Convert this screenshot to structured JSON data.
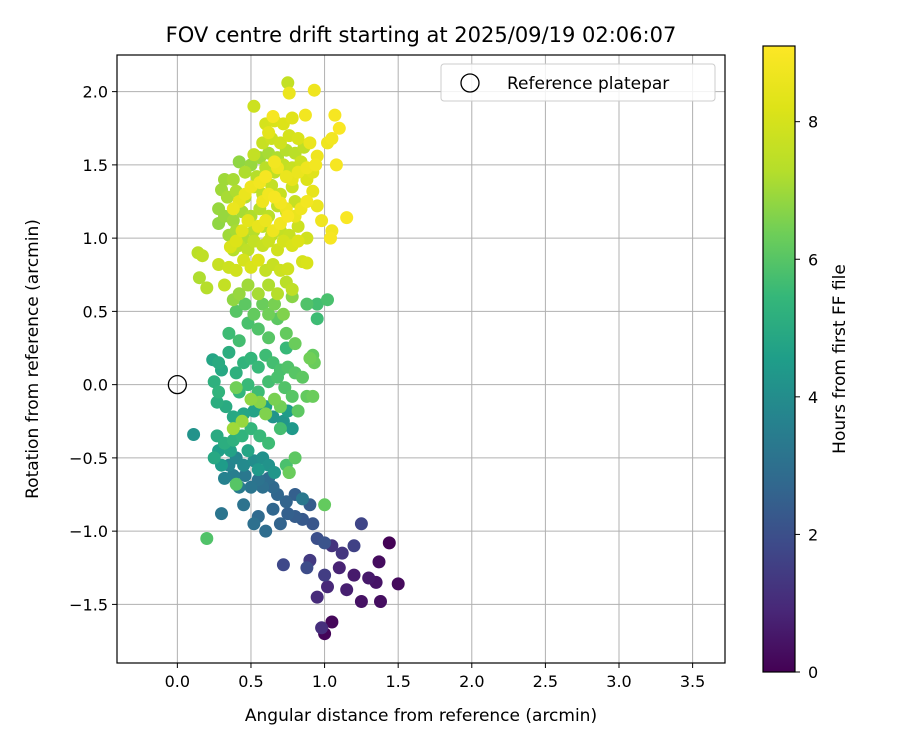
{
  "chart_data": {
    "type": "scatter",
    "title": "FOV centre drift starting at 2025/09/19 02:06:07",
    "xlabel": "Angular distance from reference (arcmin)",
    "ylabel": "Rotation from reference (arcmin)",
    "xlim": [
      -0.41,
      3.72
    ],
    "ylim": [
      -1.9,
      2.25
    ],
    "xticks": [
      0.0,
      0.5,
      1.0,
      1.5,
      2.0,
      2.5,
      3.0,
      3.5
    ],
    "xtick_labels": [
      "0.0",
      "0.5",
      "1.0",
      "1.5",
      "2.0",
      "2.5",
      "3.0",
      "3.5"
    ],
    "yticks": [
      -1.5,
      -1.0,
      -0.5,
      0.0,
      0.5,
      1.0,
      1.5,
      2.0
    ],
    "ytick_labels": [
      "−1.5",
      "−1.0",
      "−0.5",
      "0.0",
      "0.5",
      "1.0",
      "1.5",
      "2.0"
    ],
    "grid": true,
    "legend": {
      "position": "top-right",
      "entries": [
        "Reference platepar"
      ]
    },
    "reference_point": {
      "x": 0.0,
      "y": 0.0,
      "label": "Reference platepar"
    },
    "colorbar": {
      "label": "Hours from first FF file",
      "range": [
        0,
        9.1
      ],
      "ticks": [
        0,
        2,
        4,
        6,
        8
      ],
      "tick_labels": [
        "0",
        "2",
        "4",
        "6",
        "8"
      ],
      "colormap": "viridis"
    },
    "points": [
      [
        1.0,
        -1.7,
        0.1
      ],
      [
        1.05,
        -1.62,
        0.15
      ],
      [
        1.38,
        -1.48,
        0.3
      ],
      [
        1.25,
        -1.48,
        0.4
      ],
      [
        1.5,
        -1.36,
        0.2
      ],
      [
        1.37,
        -1.21,
        0.25
      ],
      [
        1.44,
        -1.08,
        0.05
      ],
      [
        1.35,
        -1.35,
        0.45
      ],
      [
        1.3,
        -1.32,
        0.55
      ],
      [
        1.2,
        -1.3,
        0.6
      ],
      [
        1.15,
        -1.4,
        0.7
      ],
      [
        1.1,
        -1.25,
        0.8
      ],
      [
        1.02,
        -1.38,
        0.9
      ],
      [
        0.95,
        -1.45,
        1.0
      ],
      [
        0.98,
        -1.66,
        1.1
      ],
      [
        1.05,
        -1.1,
        1.2
      ],
      [
        1.12,
        -1.15,
        1.3
      ],
      [
        0.9,
        -1.2,
        1.4
      ],
      [
        1.0,
        -1.3,
        1.5
      ],
      [
        1.2,
        -1.1,
        1.6
      ],
      [
        1.25,
        -0.95,
        1.7
      ],
      [
        0.72,
        -1.23,
        1.8
      ],
      [
        0.88,
        -1.25,
        1.9
      ],
      [
        0.95,
        -1.05,
        2.0
      ],
      [
        1.0,
        -1.08,
        2.1
      ],
      [
        0.92,
        -0.95,
        2.2
      ],
      [
        0.85,
        -0.92,
        2.3
      ],
      [
        0.8,
        -0.9,
        2.4
      ],
      [
        0.75,
        -0.88,
        2.5
      ],
      [
        0.7,
        -0.95,
        2.6
      ],
      [
        0.65,
        -0.85,
        2.7
      ],
      [
        0.55,
        -0.9,
        2.8
      ],
      [
        0.6,
        -1.0,
        2.9
      ],
      [
        0.52,
        -0.95,
        3.0
      ],
      [
        0.45,
        -0.82,
        3.1
      ],
      [
        0.3,
        -0.88,
        3.2
      ],
      [
        0.85,
        -0.78,
        3.3
      ],
      [
        0.9,
        -0.82,
        2.4
      ],
      [
        0.8,
        -0.75,
        2.5
      ],
      [
        0.74,
        -0.8,
        2.6
      ],
      [
        0.68,
        -0.75,
        2.7
      ],
      [
        0.65,
        -0.7,
        2.8
      ],
      [
        0.62,
        -0.64,
        2.9
      ],
      [
        0.58,
        -0.7,
        3.0
      ],
      [
        0.55,
        -0.65,
        3.1
      ],
      [
        0.5,
        -0.7,
        3.2
      ],
      [
        0.46,
        -0.62,
        3.3
      ],
      [
        0.42,
        -0.7,
        3.4
      ],
      [
        0.38,
        -0.62,
        3.5
      ],
      [
        0.32,
        -0.64,
        3.6
      ],
      [
        0.35,
        -0.55,
        3.7
      ],
      [
        0.4,
        -0.5,
        3.8
      ],
      [
        0.45,
        -0.55,
        3.9
      ],
      [
        0.52,
        -0.52,
        4.0
      ],
      [
        0.58,
        -0.5,
        4.1
      ],
      [
        0.62,
        -0.55,
        4.2
      ],
      [
        0.66,
        -0.6,
        4.3
      ],
      [
        0.55,
        -0.58,
        4.4
      ],
      [
        0.3,
        -0.55,
        4.5
      ],
      [
        0.28,
        -0.45,
        4.6
      ],
      [
        0.36,
        -0.45,
        4.7
      ],
      [
        0.48,
        -0.45,
        4.8
      ],
      [
        0.25,
        -0.5,
        4.9
      ],
      [
        0.27,
        -0.35,
        5.0
      ],
      [
        0.32,
        -0.4,
        5.1
      ],
      [
        0.38,
        -0.38,
        5.2
      ],
      [
        0.44,
        -0.35,
        5.3
      ],
      [
        0.5,
        -0.3,
        5.4
      ],
      [
        0.56,
        -0.35,
        5.5
      ],
      [
        0.62,
        -0.4,
        5.6
      ],
      [
        0.7,
        -0.3,
        5.7
      ],
      [
        0.74,
        -0.55,
        5.8
      ],
      [
        0.76,
        -0.6,
        5.9
      ],
      [
        0.4,
        -0.68,
        6.0
      ],
      [
        0.8,
        -0.5,
        6.1
      ],
      [
        1.0,
        -0.82,
        6.2
      ],
      [
        0.65,
        -0.22,
        4.2
      ],
      [
        0.72,
        -0.25,
        4.3
      ],
      [
        0.78,
        -0.3,
        4.4
      ],
      [
        0.75,
        -0.18,
        4.5
      ],
      [
        0.6,
        -0.15,
        4.6
      ],
      [
        0.52,
        -0.18,
        4.7
      ],
      [
        0.45,
        -0.2,
        4.8
      ],
      [
        0.38,
        -0.22,
        4.9
      ],
      [
        0.33,
        -0.15,
        5.0
      ],
      [
        0.27,
        -0.12,
        5.1
      ],
      [
        0.25,
        0.02,
        5.2
      ],
      [
        0.28,
        -0.05,
        5.3
      ],
      [
        0.42,
        -0.05,
        5.4
      ],
      [
        0.48,
        0.0,
        5.5
      ],
      [
        0.55,
        -0.05,
        5.6
      ],
      [
        0.62,
        0.02,
        5.7
      ],
      [
        0.68,
        0.05,
        5.8
      ],
      [
        0.73,
        -0.02,
        5.9
      ],
      [
        0.78,
        -0.08,
        6.0
      ],
      [
        0.82,
        -0.18,
        6.1
      ],
      [
        0.88,
        -0.08,
        6.2
      ],
      [
        0.92,
        -0.08,
        6.3
      ],
      [
        0.7,
        -0.15,
        6.4
      ],
      [
        0.66,
        -0.1,
        6.5
      ],
      [
        0.6,
        -0.2,
        6.6
      ],
      [
        0.56,
        -0.12,
        6.7
      ],
      [
        0.5,
        -0.1,
        6.8
      ],
      [
        0.44,
        -0.25,
        6.9
      ],
      [
        0.38,
        -0.3,
        7.0
      ],
      [
        0.24,
        0.17,
        4.8
      ],
      [
        0.3,
        0.1,
        4.9
      ],
      [
        0.28,
        0.15,
        5.0
      ],
      [
        0.35,
        0.22,
        5.1
      ],
      [
        0.4,
        0.08,
        5.2
      ],
      [
        0.45,
        0.15,
        5.3
      ],
      [
        0.5,
        0.18,
        5.4
      ],
      [
        0.55,
        0.12,
        5.5
      ],
      [
        0.6,
        0.2,
        5.6
      ],
      [
        0.65,
        0.15,
        5.7
      ],
      [
        0.7,
        0.1,
        5.8
      ],
      [
        0.75,
        0.12,
        5.9
      ],
      [
        0.8,
        0.08,
        6.0
      ],
      [
        0.85,
        0.05,
        6.1
      ],
      [
        0.92,
        0.2,
        6.2
      ],
      [
        0.93,
        0.15,
        6.3
      ],
      [
        0.4,
        -0.02,
        6.4
      ],
      [
        0.74,
        0.25,
        5.5
      ],
      [
        0.35,
        0.35,
        5.6
      ],
      [
        0.42,
        0.3,
        5.7
      ],
      [
        0.48,
        0.42,
        5.8
      ],
      [
        0.55,
        0.38,
        5.9
      ],
      [
        0.62,
        0.32,
        6.0
      ],
      [
        0.68,
        0.45,
        6.1
      ],
      [
        0.74,
        0.35,
        6.2
      ],
      [
        0.8,
        0.28,
        6.3
      ],
      [
        0.9,
        0.18,
        6.4
      ],
      [
        0.95,
        0.45,
        5.6
      ],
      [
        0.95,
        0.55,
        5.7
      ],
      [
        1.02,
        0.58,
        5.8
      ],
      [
        0.88,
        0.55,
        5.9
      ],
      [
        0.4,
        0.5,
        6.0
      ],
      [
        0.46,
        0.55,
        6.1
      ],
      [
        0.52,
        0.48,
        6.2
      ],
      [
        0.58,
        0.55,
        6.3
      ],
      [
        0.62,
        0.48,
        6.4
      ],
      [
        0.66,
        0.55,
        6.5
      ],
      [
        0.72,
        0.48,
        6.6
      ],
      [
        0.78,
        0.6,
        6.7
      ],
      [
        0.38,
        0.58,
        6.8
      ],
      [
        0.42,
        0.62,
        6.9
      ],
      [
        0.48,
        0.68,
        7.0
      ],
      [
        0.55,
        0.62,
        7.1
      ],
      [
        0.62,
        0.68,
        7.2
      ],
      [
        0.68,
        0.62,
        7.3
      ],
      [
        0.74,
        0.7,
        7.4
      ],
      [
        0.78,
        0.65,
        7.5
      ],
      [
        0.32,
        0.68,
        7.6
      ],
      [
        0.28,
        0.82,
        7.7
      ],
      [
        0.35,
        0.8,
        7.8
      ],
      [
        0.4,
        0.78,
        7.9
      ],
      [
        0.45,
        0.85,
        8.0
      ],
      [
        0.5,
        0.8,
        8.1
      ],
      [
        0.55,
        0.85,
        8.2
      ],
      [
        0.15,
        0.73,
        7.2
      ],
      [
        0.2,
        0.66,
        7.3
      ],
      [
        0.14,
        0.9,
        7.4
      ],
      [
        0.17,
        0.88,
        7.5
      ],
      [
        0.6,
        0.78,
        7.6
      ],
      [
        0.65,
        0.82,
        7.7
      ],
      [
        0.7,
        0.78,
        7.8
      ],
      [
        0.75,
        0.79,
        7.9
      ],
      [
        0.85,
        0.84,
        8.0
      ],
      [
        0.88,
        0.83,
        8.1
      ],
      [
        0.38,
        0.92,
        7.3
      ],
      [
        0.42,
        0.95,
        7.4
      ],
      [
        0.48,
        0.92,
        7.5
      ],
      [
        0.52,
        0.98,
        7.6
      ],
      [
        0.58,
        0.95,
        7.7
      ],
      [
        0.62,
        0.98,
        7.8
      ],
      [
        0.68,
        0.92,
        7.9
      ],
      [
        0.72,
        0.98,
        8.0
      ],
      [
        0.78,
        0.95,
        8.1
      ],
      [
        0.82,
        0.98,
        8.2
      ],
      [
        0.35,
        1.02,
        7.0
      ],
      [
        0.4,
        1.05,
        7.1
      ],
      [
        0.45,
        1.0,
        7.2
      ],
      [
        0.52,
        1.05,
        7.3
      ],
      [
        0.58,
        1.08,
        7.4
      ],
      [
        0.64,
        1.02,
        7.5
      ],
      [
        0.7,
        1.05,
        7.6
      ],
      [
        0.76,
        1.02,
        7.7
      ],
      [
        0.82,
        1.08,
        7.8
      ],
      [
        0.88,
        1.0,
        7.9
      ],
      [
        0.28,
        1.1,
        6.8
      ],
      [
        0.32,
        1.15,
        6.9
      ],
      [
        0.38,
        1.12,
        7.0
      ],
      [
        0.44,
        1.18,
        7.1
      ],
      [
        0.5,
        1.15,
        7.2
      ],
      [
        0.56,
        1.2,
        7.3
      ],
      [
        0.62,
        1.15,
        7.4
      ],
      [
        0.68,
        1.22,
        7.5
      ],
      [
        0.74,
        1.18,
        7.6
      ],
      [
        0.8,
        1.25,
        7.7
      ],
      [
        0.28,
        1.2,
        6.9
      ],
      [
        0.3,
        1.33,
        7.0
      ],
      [
        0.34,
        1.28,
        7.1
      ],
      [
        0.4,
        1.32,
        7.2
      ],
      [
        0.46,
        1.28,
        7.3
      ],
      [
        0.52,
        1.35,
        7.4
      ],
      [
        0.58,
        1.3,
        7.5
      ],
      [
        0.64,
        1.36,
        7.6
      ],
      [
        0.7,
        1.3,
        7.7
      ],
      [
        0.78,
        1.35,
        7.8
      ],
      [
        0.32,
        1.4,
        7.0
      ],
      [
        0.38,
        1.4,
        7.1
      ],
      [
        0.46,
        1.45,
        7.2
      ],
      [
        0.54,
        1.42,
        7.3
      ],
      [
        0.6,
        1.48,
        7.4
      ],
      [
        0.66,
        1.45,
        7.5
      ],
      [
        0.72,
        1.5,
        7.6
      ],
      [
        0.78,
        1.48,
        7.7
      ],
      [
        0.84,
        1.52,
        7.8
      ],
      [
        0.42,
        1.52,
        6.8
      ],
      [
        0.5,
        1.5,
        6.9
      ],
      [
        0.56,
        1.55,
        7.0
      ],
      [
        0.62,
        1.58,
        7.1
      ],
      [
        0.68,
        1.55,
        7.2
      ],
      [
        0.74,
        1.6,
        7.3
      ],
      [
        0.8,
        1.58,
        7.4
      ],
      [
        0.86,
        1.62,
        7.5
      ],
      [
        0.52,
        1.57,
        7.6
      ],
      [
        0.58,
        1.65,
        7.7
      ],
      [
        0.64,
        1.68,
        7.8
      ],
      [
        0.7,
        1.65,
        7.9
      ],
      [
        0.76,
        1.7,
        8.0
      ],
      [
        0.82,
        1.68,
        8.1
      ],
      [
        0.88,
        1.4,
        8.2
      ],
      [
        0.92,
        1.45,
        8.3
      ],
      [
        0.6,
        1.78,
        8.0
      ],
      [
        0.66,
        1.8,
        8.1
      ],
      [
        0.72,
        1.78,
        8.2
      ],
      [
        0.78,
        1.82,
        8.3
      ],
      [
        0.62,
        1.72,
        8.4
      ],
      [
        0.52,
        1.9,
        7.8
      ],
      [
        0.75,
        2.06,
        7.6
      ],
      [
        0.76,
        1.99,
        8.6
      ],
      [
        0.93,
        2.01,
        8.7
      ],
      [
        0.87,
        1.84,
        8.8
      ],
      [
        0.65,
        1.83,
        8.9
      ],
      [
        1.07,
        1.84,
        8.9
      ],
      [
        1.1,
        1.75,
        9.0
      ],
      [
        1.05,
        1.68,
        8.8
      ],
      [
        1.02,
        1.65,
        8.7
      ],
      [
        0.9,
        1.65,
        8.6
      ],
      [
        0.95,
        1.56,
        8.7
      ],
      [
        1.08,
        1.5,
        8.9
      ],
      [
        0.94,
        1.5,
        8.8
      ],
      [
        0.88,
        1.48,
        8.7
      ],
      [
        0.82,
        1.45,
        8.6
      ],
      [
        0.78,
        1.4,
        8.5
      ],
      [
        0.74,
        1.42,
        8.6
      ],
      [
        0.68,
        1.48,
        8.7
      ],
      [
        0.66,
        1.52,
        8.8
      ],
      [
        0.6,
        1.42,
        8.9
      ],
      [
        0.56,
        1.38,
        8.8
      ],
      [
        0.5,
        1.35,
        8.7
      ],
      [
        0.46,
        1.3,
        8.6
      ],
      [
        0.42,
        1.25,
        8.5
      ],
      [
        0.38,
        1.2,
        8.6
      ],
      [
        0.58,
        1.25,
        8.7
      ],
      [
        0.62,
        1.3,
        8.8
      ],
      [
        0.66,
        1.28,
        8.9
      ],
      [
        0.7,
        1.24,
        8.8
      ],
      [
        0.74,
        1.2,
        8.7
      ],
      [
        0.8,
        1.15,
        8.6
      ],
      [
        0.84,
        1.2,
        8.7
      ],
      [
        0.88,
        1.25,
        8.8
      ],
      [
        0.92,
        1.32,
        8.5
      ],
      [
        0.95,
        1.22,
        8.6
      ],
      [
        0.98,
        1.12,
        8.7
      ],
      [
        1.05,
        1.05,
        8.8
      ],
      [
        1.04,
        1.0,
        8.9
      ],
      [
        1.15,
        1.14,
        9.0
      ],
      [
        0.55,
        1.08,
        8.5
      ],
      [
        0.6,
        1.12,
        8.6
      ],
      [
        0.65,
        1.05,
        8.7
      ],
      [
        0.7,
        1.1,
        8.8
      ],
      [
        0.75,
        1.15,
        8.9
      ],
      [
        0.48,
        1.12,
        8.4
      ],
      [
        0.44,
        1.05,
        8.3
      ],
      [
        0.4,
        0.98,
        8.2
      ],
      [
        0.36,
        0.94,
        8.1
      ],
      [
        0.2,
        -1.05,
        5.9
      ],
      [
        0.11,
        -0.34,
        4.2
      ],
      [
        0.76,
        -0.6,
        6.3
      ]
    ]
  }
}
